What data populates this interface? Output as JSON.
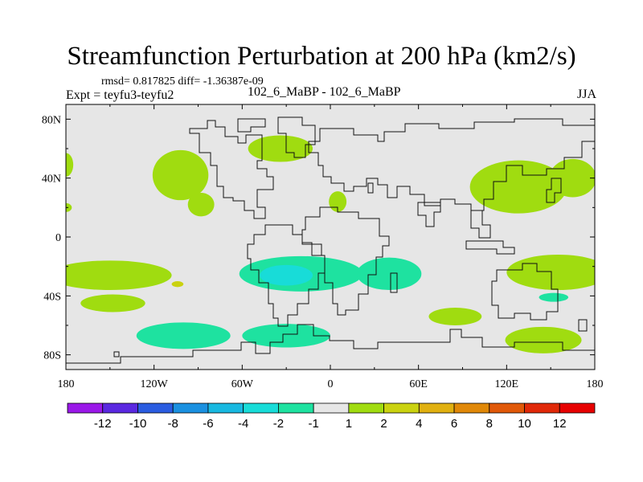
{
  "title": "Streamfunction Perturbation at 200 hPa (km2/s)",
  "stats_text": "rmsd= 0.817825 diff= -1.36387e-09",
  "expt_text": "Expt = teyfu3-teyfu2",
  "case_text": "102_6_MaBP - 102_6_MaBP",
  "season": "JJA",
  "chart_data": {
    "type": "heatmap",
    "title": "Streamfunction Perturbation at 200 hPa (km2/s)",
    "xlabel": "",
    "ylabel": "",
    "xlim": [
      -180,
      180
    ],
    "ylim": [
      -90,
      90
    ],
    "x_ticks": [
      {
        "value": -180,
        "label": "180"
      },
      {
        "value": -120,
        "label": "120W"
      },
      {
        "value": -60,
        "label": "60W"
      },
      {
        "value": 0,
        "label": "0"
      },
      {
        "value": 60,
        "label": "60E"
      },
      {
        "value": 120,
        "label": "120E"
      },
      {
        "value": 180,
        "label": "180"
      }
    ],
    "y_ticks": [
      {
        "value": 80,
        "label": "80N"
      },
      {
        "value": 40,
        "label": "40N"
      },
      {
        "value": 0,
        "label": "0"
      },
      {
        "value": -40,
        "label": "40S"
      },
      {
        "value": -80,
        "label": "80S"
      }
    ],
    "colorbar": {
      "labels": [
        "-12",
        "-10",
        "-8",
        "-6",
        "-4",
        "-2",
        "-1",
        "1",
        "2",
        "4",
        "6",
        "8",
        "10",
        "12"
      ],
      "colors": [
        "#9a18e8",
        "#5a28e0",
        "#2a5ce0",
        "#1a90e0",
        "#18b8e0",
        "#18dcd8",
        "#1ee2a0",
        "#e6e6e6",
        "#a0dc10",
        "#cad210",
        "#e0b010",
        "#e08808",
        "#e05808",
        "#e02808",
        "#e60000"
      ]
    },
    "regions": [
      {
        "name": "positive-north-pacific-west",
        "level": "1 to 2",
        "lon": -180,
        "lat": 49,
        "rlon": 5,
        "rlat": 8
      },
      {
        "name": "positive-north-pacific-west-small",
        "level": "1 to 2",
        "lon": -180,
        "lat": 20,
        "rlon": 4,
        "rlat": 3
      },
      {
        "name": "positive-north-america-northwest",
        "level": "1 to 2",
        "lon": -34,
        "lat": 60,
        "rlon": 22,
        "rlat": 9
      },
      {
        "name": "positive-north-america",
        "level": "1 to 2",
        "lon": -102,
        "lat": 42,
        "rlon": 19,
        "rlat": 17
      },
      {
        "name": "positive-north-america-south",
        "level": "1 to 2",
        "lon": -88,
        "lat": 22,
        "rlon": 9,
        "rlat": 8
      },
      {
        "name": "positive-europe",
        "level": "1 to 2",
        "lon": 5,
        "lat": 24,
        "rlon": 6,
        "rlat": 7
      },
      {
        "name": "positive-east-asia",
        "level": "1 to 2",
        "lon": 128,
        "lat": 34,
        "rlon": 33,
        "rlat": 18
      },
      {
        "name": "positive-east-asia-east",
        "level": "1 to 2",
        "lon": 165,
        "lat": 40,
        "rlon": 16,
        "rlat": 13
      },
      {
        "name": "positive-south-pacific-subtropics",
        "level": "1 to 2",
        "lon": -150,
        "lat": -26,
        "rlon": 42,
        "rlat": 10
      },
      {
        "name": "positive-south-pacific-core",
        "level": "2 to 4",
        "lon": -104,
        "lat": -32,
        "rlon": 4,
        "rlat": 2
      },
      {
        "name": "positive-south-pacific-midlat",
        "level": "1 to 2",
        "lon": -148,
        "lat": -45,
        "rlon": 22,
        "rlat": 6
      },
      {
        "name": "positive-indian-ocean",
        "level": "1 to 2",
        "lon": 85,
        "lat": -54,
        "rlon": 18,
        "rlat": 6
      },
      {
        "name": "positive-australia-west",
        "level": "1 to 2",
        "lon": 155,
        "lat": -24,
        "rlon": 35,
        "rlat": 12
      },
      {
        "name": "positive-southern-ocean-east",
        "level": "1 to 2",
        "lon": 145,
        "lat": -70,
        "rlon": 26,
        "rlat": 9
      },
      {
        "name": "negative-south-atlantic",
        "level": "-1 to -2",
        "lon": -20,
        "lat": -25,
        "rlon": 42,
        "rlat": 12
      },
      {
        "name": "negative-south-africa",
        "level": "-1 to -2",
        "lon": 40,
        "lat": -25,
        "rlon": 22,
        "rlat": 11
      },
      {
        "name": "negative-south-atlantic-core",
        "level": "-2 to -4",
        "lon": -30,
        "lat": -26,
        "rlon": 18,
        "rlat": 7
      },
      {
        "name": "negative-southern-ocean-west",
        "level": "-1 to -2",
        "lon": -100,
        "lat": -67,
        "rlon": 32,
        "rlat": 9
      },
      {
        "name": "negative-southern-ocean-atlantic",
        "level": "-1 to -2",
        "lon": -30,
        "lat": -67,
        "rlon": 30,
        "rlat": 8
      },
      {
        "name": "negative-australia-small",
        "level": "-1 to -2",
        "lon": 152,
        "lat": -41,
        "rlon": 10,
        "rlat": 3
      }
    ]
  }
}
